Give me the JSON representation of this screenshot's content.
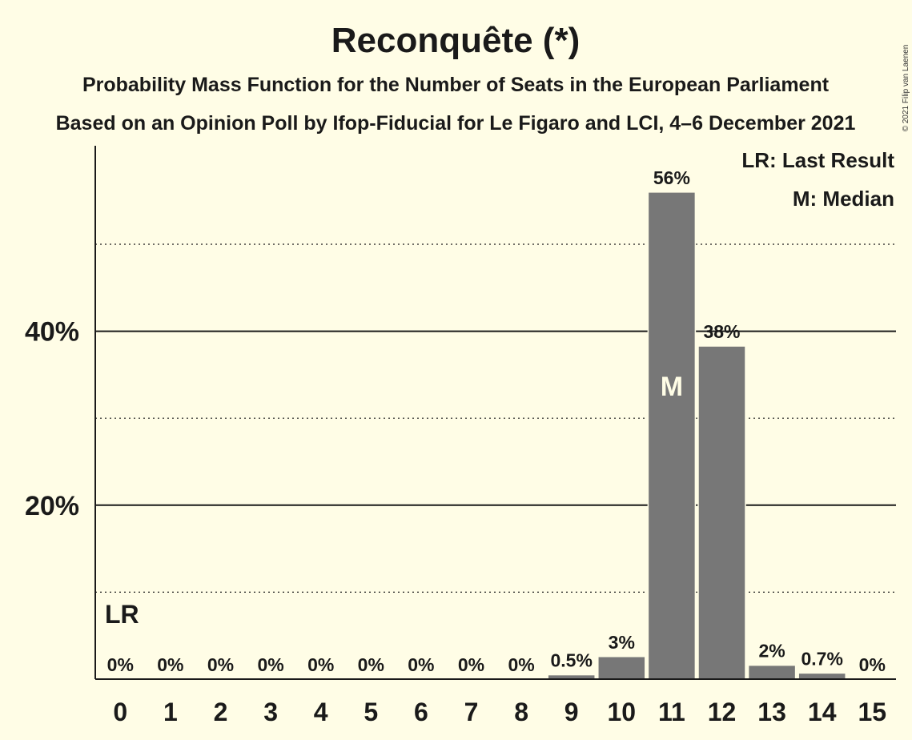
{
  "chart_data": {
    "type": "bar",
    "title": "Reconquête (*)",
    "subtitle_1": "Probability Mass Function for the Number of Seats in the European Parliament",
    "subtitle_2": "Based on an Opinion Poll by Ifop-Fiducial for Le Figaro and LCI, 4–6 December 2021",
    "copyright": "© 2021 Filip van Laenen",
    "categories": [
      "0",
      "1",
      "2",
      "3",
      "4",
      "5",
      "6",
      "7",
      "8",
      "9",
      "10",
      "11",
      "12",
      "13",
      "14",
      "15"
    ],
    "values": [
      0,
      0,
      0,
      0,
      0,
      0,
      0,
      0,
      0,
      0.5,
      2.6,
      56,
      38.3,
      1.6,
      0.7,
      0
    ],
    "value_labels": [
      "0%",
      "0%",
      "0%",
      "0%",
      "0%",
      "0%",
      "0%",
      "0%",
      "0%",
      "0.5%",
      "3%",
      "56%",
      "38%",
      "2%",
      "0.7%",
      "0%"
    ],
    "ylim": [
      0,
      61
    ],
    "y_ticks": [
      {
        "value": 20,
        "label": "20%"
      },
      {
        "value": 40,
        "label": "40%"
      }
    ],
    "y_minor_gridlines": [
      10,
      30,
      50
    ],
    "xlabel": "",
    "ylabel": "",
    "bar_color": "#777777",
    "background_color": "#fffde6",
    "last_result": {
      "category": "0",
      "marker": "LR"
    },
    "median": {
      "category": "11",
      "marker": "M"
    },
    "legend": {
      "position": "top-right",
      "items": [
        "LR: Last Result",
        "M: Median"
      ]
    }
  }
}
